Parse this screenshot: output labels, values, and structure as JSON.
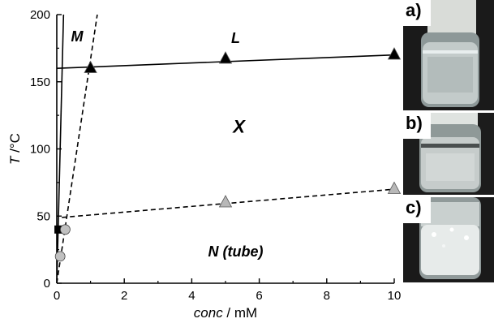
{
  "chart_data": {
    "type": "scatter",
    "xlabel_italic": "conc",
    "xlabel_unit": " / mM",
    "ylabel_italic": "T",
    "ylabel_unit": " /°C",
    "xlim": [
      0,
      10
    ],
    "ylim": [
      0,
      200
    ],
    "x_ticks": [
      "0",
      "2",
      "4",
      "6",
      "8",
      "10"
    ],
    "y_ticks": [
      "0",
      "50",
      "100",
      "150",
      "200"
    ],
    "grid": false,
    "annotations": {
      "M": "M",
      "L": "L",
      "X": "X",
      "N": "N (tube)"
    },
    "series": [
      {
        "marker": "triangle",
        "fill": "#000000",
        "points": [
          {
            "x": 1,
            "y": 160
          },
          {
            "x": 5,
            "y": 167
          },
          {
            "x": 10,
            "y": 170
          }
        ]
      },
      {
        "marker": "triangle",
        "fill": "#b8b8b8",
        "points": [
          {
            "x": 5,
            "y": 60
          },
          {
            "x": 10,
            "y": 70
          }
        ]
      },
      {
        "marker": "square",
        "fill": "#000000",
        "points": [
          {
            "x": 0.05,
            "y": 40
          }
        ]
      },
      {
        "marker": "circle",
        "fill": "#c0c0c0",
        "points": [
          {
            "x": 0.1,
            "y": 20
          },
          {
            "x": 0.25,
            "y": 40
          }
        ]
      }
    ],
    "lines": [
      {
        "style": "solid",
        "points": [
          {
            "x": 0,
            "y": 160
          },
          {
            "x": 10,
            "y": 170
          }
        ]
      },
      {
        "style": "solid",
        "points": [
          {
            "x": 0,
            "y": 0
          },
          {
            "x": 0.2,
            "y": 200
          }
        ]
      },
      {
        "style": "dashed",
        "points": [
          {
            "x": 0,
            "y": 0
          },
          {
            "x": 1.2,
            "y": 200
          }
        ]
      },
      {
        "style": "dashed",
        "points": [
          {
            "x": 0.15,
            "y": 49
          },
          {
            "x": 10,
            "y": 70
          }
        ]
      }
    ]
  },
  "photos": [
    {
      "label": "a)",
      "liquid": "clear"
    },
    {
      "label": "b)",
      "liquid": "slightly-turbid"
    },
    {
      "label": "c)",
      "liquid": "white-precipitate"
    }
  ]
}
